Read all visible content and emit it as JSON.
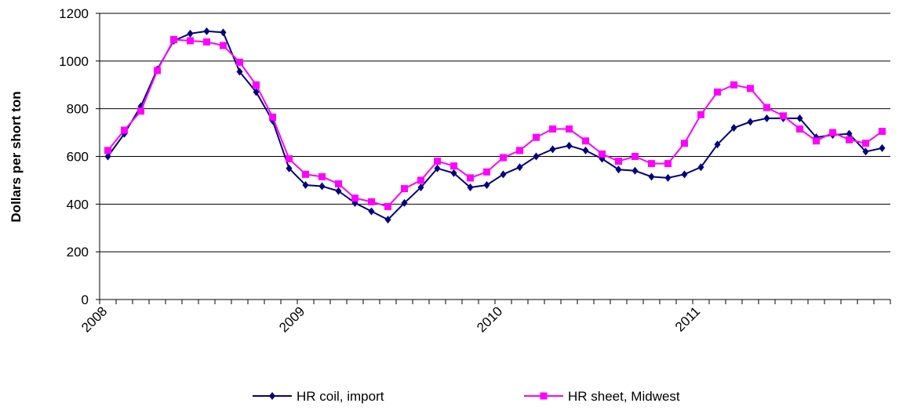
{
  "chart_data": {
    "type": "line",
    "y_label": "Dollars per short ton",
    "categories": [
      "2008",
      null,
      null,
      null,
      null,
      null,
      null,
      null,
      null,
      null,
      null,
      null,
      "2009",
      null,
      null,
      null,
      null,
      null,
      null,
      null,
      null,
      null,
      null,
      null,
      "2010",
      null,
      null,
      null,
      null,
      null,
      null,
      null,
      null,
      null,
      null,
      null,
      "2011",
      null,
      null,
      null,
      null,
      null,
      null,
      null,
      null,
      null,
      null,
      null
    ],
    "series": [
      {
        "name": "HR coil, import",
        "color": "#000080",
        "marker": "diamond",
        "values": [
          600,
          695,
          810,
          965,
          1085,
          1115,
          1125,
          1120,
          955,
          870,
          750,
          550,
          480,
          475,
          455,
          405,
          370,
          335,
          405,
          470,
          550,
          530,
          470,
          480,
          525,
          555,
          600,
          630,
          645,
          625,
          590,
          545,
          540,
          515,
          510,
          525,
          555,
          650,
          720,
          745,
          760,
          760,
          760,
          680,
          690,
          695,
          620,
          635
        ]
      },
      {
        "name": "HR sheet, Midwest",
        "color": "#ff00ff",
        "marker": "square",
        "values": [
          625,
          710,
          790,
          960,
          1090,
          1085,
          1080,
          1065,
          995,
          900,
          765,
          590,
          525,
          515,
          485,
          425,
          410,
          390,
          465,
          500,
          580,
          560,
          510,
          535,
          595,
          625,
          680,
          715,
          715,
          665,
          610,
          580,
          600,
          570,
          570,
          655,
          775,
          870,
          900,
          885,
          805,
          770,
          715,
          665,
          700,
          670,
          655,
          705
        ]
      }
    ],
    "ylim": [
      0,
      1200
    ],
    "yticks": [
      0,
      200,
      400,
      600,
      800,
      1000,
      1200
    ],
    "grid": true,
    "legend": "bottom"
  }
}
